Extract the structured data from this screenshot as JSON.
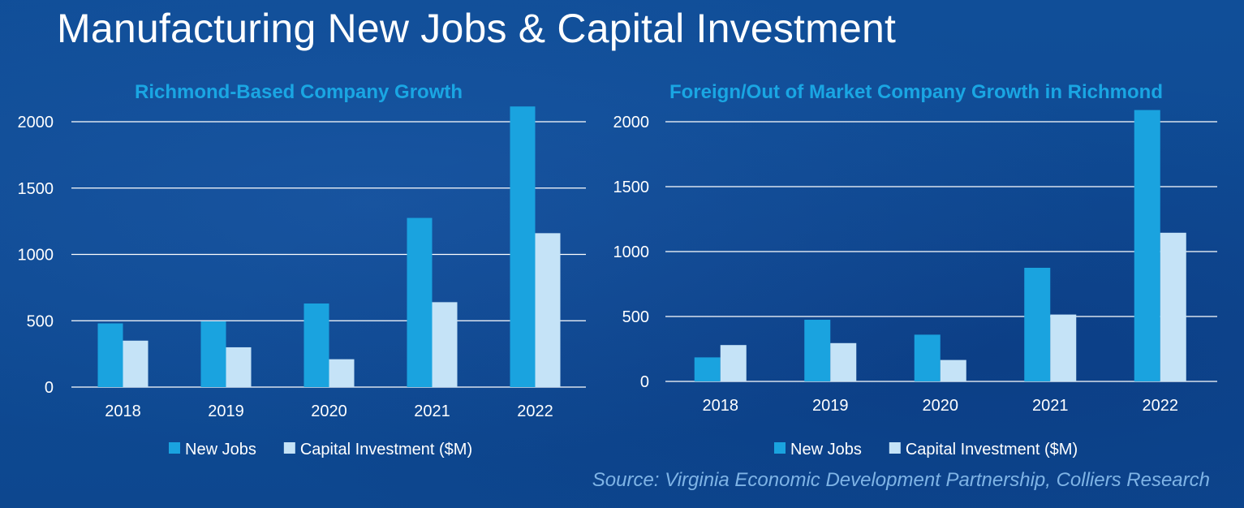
{
  "title": "Manufacturing New Jobs & Capital Investment",
  "source": "Source: Virginia Economic Development Partnership, Colliers Research",
  "colors": {
    "new_jobs": "#1aa3df",
    "capital": "#c5e3f7",
    "chart_title": "#1aa6e3",
    "grid": "#ffffff"
  },
  "chart_data": [
    {
      "type": "bar",
      "title": "Richmond-Based Company Growth",
      "categories": [
        "2018",
        "2019",
        "2020",
        "2021",
        "2022"
      ],
      "series": [
        {
          "name": "New Jobs",
          "values": [
            480,
            495,
            630,
            1275,
            2115
          ]
        },
        {
          "name": "Capital Investment ($M)",
          "values": [
            350,
            300,
            210,
            640,
            1160
          ]
        }
      ],
      "ylim": [
        0,
        2000
      ],
      "yticks": [
        "0",
        "500",
        "1000",
        "1500",
        "2000"
      ],
      "grid": true,
      "legend": "bottom"
    },
    {
      "type": "bar",
      "title": "Foreign/Out of Market Company Growth in Richmond",
      "categories": [
        "2018",
        "2019",
        "2020",
        "2021",
        "2022"
      ],
      "series": [
        {
          "name": "New Jobs",
          "values": [
            185,
            475,
            360,
            875,
            2090
          ]
        },
        {
          "name": "Capital Investment ($M)",
          "values": [
            280,
            295,
            165,
            515,
            1145
          ]
        }
      ],
      "ylim": [
        0,
        2000
      ],
      "yticks": [
        "0",
        "500",
        "1000",
        "1500",
        "2000"
      ],
      "grid": true,
      "legend": "bottom"
    }
  ]
}
